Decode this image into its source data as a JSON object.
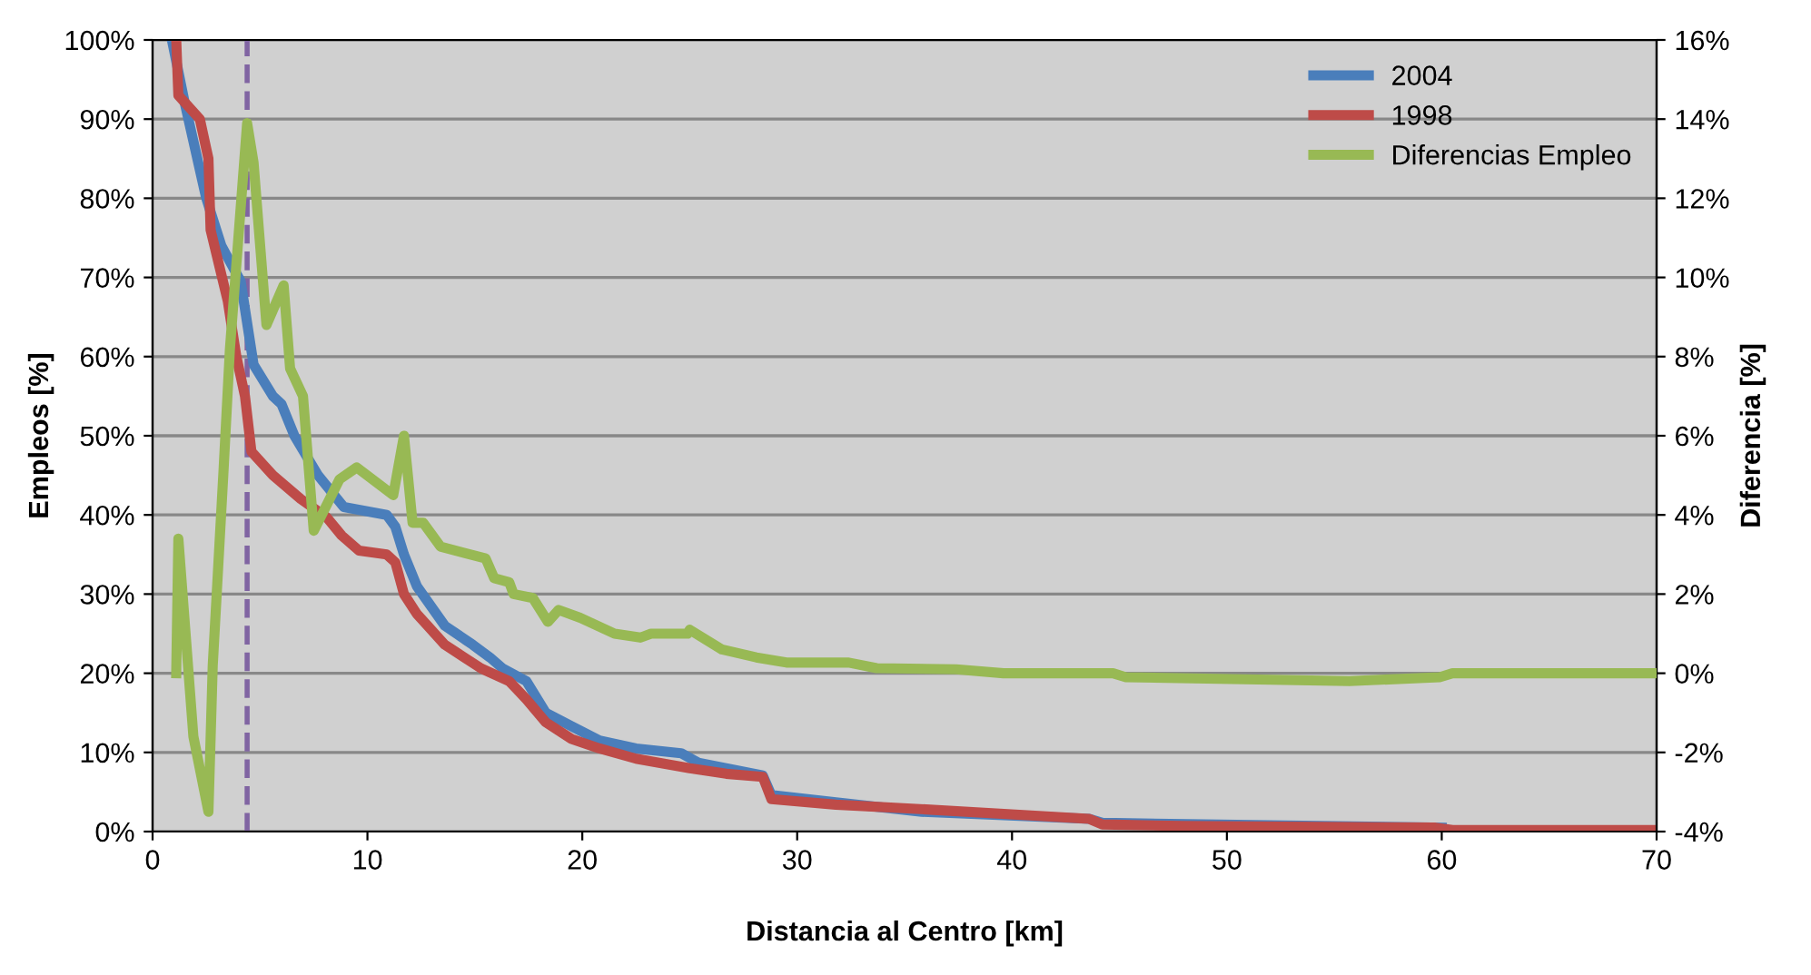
{
  "chart_data": {
    "type": "line",
    "xlabel": "Distancia al Centro [km]",
    "ylabel": "Empleos [%]",
    "y2label": "Diferencia [%]",
    "series": [
      {
        "name": "2004",
        "color": "#4a7ebb",
        "x": [
          0.9,
          1.5,
          2.5,
          3.2,
          4.1,
          4.7,
          5.6,
          6.0,
          6.6,
          7.7,
          8.9,
          10.9,
          11.3,
          11.7,
          12.3,
          13.6,
          14.9,
          15.7,
          16.3,
          17.4,
          18.3,
          19.5,
          20.8,
          22.5,
          24.6,
          25.4,
          28.4,
          28.8,
          31.8,
          35.8,
          43.6,
          44.2,
          60
        ],
        "values": [
          100,
          92,
          80,
          74,
          69.5,
          59,
          55,
          54,
          50,
          45,
          41,
          40,
          38.5,
          35,
          31,
          26,
          23.6,
          22,
          20.6,
          19,
          15,
          13.3,
          11.5,
          10.5,
          9.9,
          8.7,
          7.1,
          4.6,
          3.7,
          2.5,
          1.6,
          1.1,
          0.5
        ]
      },
      {
        "name": "1998",
        "color": "#be4b48",
        "x": [
          1.1,
          1.2,
          2.2,
          2.6,
          2.7,
          3.5,
          3.9,
          4.3,
          4.6,
          5.6,
          6.9,
          8.1,
          8.8,
          9.6,
          10.9,
          11.3,
          11.7,
          12.3,
          12.8,
          13.6,
          14.5,
          15.3,
          16.6,
          17.4,
          18.3,
          19.5,
          20.8,
          22.5,
          25,
          26.7,
          28.4,
          28.8,
          31.8,
          36,
          43.6,
          44.2,
          47.9,
          59.7,
          60.5,
          70
        ],
        "values": [
          100,
          93,
          90,
          85,
          76,
          67,
          60,
          55,
          48,
          45,
          42,
          39.7,
          37.4,
          35.5,
          35,
          34,
          30,
          27.5,
          26,
          23.6,
          22,
          20.6,
          19,
          16.7,
          13.8,
          11.7,
          10.5,
          9.2,
          8,
          7.3,
          6.9,
          4.1,
          3.4,
          2.8,
          1.6,
          0.9,
          0.7,
          0.5,
          0.2,
          0.2
        ]
      },
      {
        "name": "Diferencias Empleo",
        "color": "#98b954",
        "axis": "y2",
        "x": [
          1.1,
          1.2,
          1.9,
          2.6,
          2.8,
          3.3,
          3.6,
          4.4,
          4.7,
          5.3,
          6.1,
          6.4,
          7.0,
          7.5,
          8.7,
          9.5,
          11.2,
          11.7,
          12.1,
          12.6,
          13.4,
          15.5,
          15.9,
          16.6,
          16.8,
          17.7,
          18.4,
          18.9,
          19.9,
          21.5,
          22.7,
          23.2,
          24.9,
          25.0,
          26.5,
          28.1,
          29.5,
          32.4,
          33.7,
          37.4,
          39.6,
          44.7,
          45.3,
          55.7,
          59.9,
          60.5,
          70
        ],
        "values": [
          0,
          3.4,
          -1.6,
          -3.5,
          0.2,
          5.1,
          8.2,
          13.9,
          12.9,
          8.8,
          9.8,
          7.7,
          7.0,
          3.6,
          4.9,
          5.2,
          4.5,
          6.0,
          3.8,
          3.8,
          3.2,
          2.9,
          2.4,
          2.3,
          2.0,
          1.9,
          1.3,
          1.6,
          1.4,
          1.0,
          0.9,
          1.0,
          1.0,
          1.1,
          0.6,
          0.4,
          0.27,
          0.27,
          0.13,
          0.1,
          0,
          0,
          -0.1,
          -0.2,
          -0.1,
          0,
          0
        ]
      }
    ],
    "xlim": [
      0,
      70
    ],
    "xticks": [
      0,
      10,
      20,
      30,
      40,
      50,
      60,
      70
    ],
    "ylim": [
      0,
      100
    ],
    "yticks": [
      {
        "value": 0,
        "label": "0%"
      },
      {
        "value": 10,
        "label": "10%"
      },
      {
        "value": 20,
        "label": "20%"
      },
      {
        "value": 30,
        "label": "30%"
      },
      {
        "value": 40,
        "label": "40%"
      },
      {
        "value": 50,
        "label": "50%"
      },
      {
        "value": 60,
        "label": "60%"
      },
      {
        "value": 70,
        "label": "70%"
      },
      {
        "value": 80,
        "label": "80%"
      },
      {
        "value": 90,
        "label": "90%"
      },
      {
        "value": 100,
        "label": "100%"
      }
    ],
    "y2lim": [
      -4,
      16
    ],
    "y2ticks": [
      {
        "value": -4,
        "label": "-4%"
      },
      {
        "value": -2,
        "label": "-2%"
      },
      {
        "value": 0,
        "label": "0%"
      },
      {
        "value": 2,
        "label": "2%"
      },
      {
        "value": 4,
        "label": "4%"
      },
      {
        "value": 6,
        "label": "6%"
      },
      {
        "value": 8,
        "label": "8%"
      },
      {
        "value": 10,
        "label": "10%"
      },
      {
        "value": 12,
        "label": "12%"
      },
      {
        "value": 14,
        "label": "14%"
      },
      {
        "value": 16,
        "label": "16%"
      }
    ],
    "ref_lines": [
      {
        "axis": "x",
        "value": 4.4,
        "color": "#8064a2",
        "line_style": "dashed"
      }
    ],
    "grid": "y",
    "legend": "top right",
    "marker": "none",
    "line_style": "solid"
  }
}
